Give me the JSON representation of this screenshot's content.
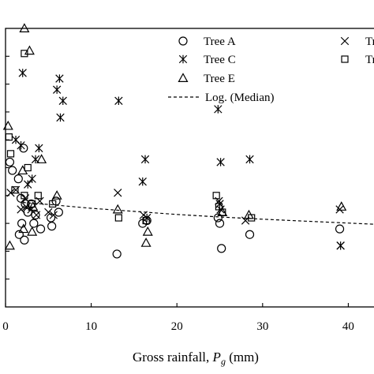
{
  "chart_data": {
    "type": "scatter",
    "xlabel": "Gross rainfall, ",
    "xlabel_var": "P",
    "xlabel_sub": "g",
    "xlabel_unit": " (mm)",
    "ylabel": "",
    "xlim": [
      0,
      43
    ],
    "ylim": [
      0,
      100
    ],
    "x_ticks": [
      0,
      10,
      20,
      30,
      40
    ],
    "grid": false,
    "legend_position": "top-right",
    "series": [
      {
        "name": "Tree A",
        "marker": "circle",
        "points": [
          [
            0.5,
            52
          ],
          [
            0.8,
            49
          ],
          [
            1.5,
            46
          ],
          [
            2.1,
            57
          ],
          [
            1.8,
            39
          ],
          [
            2.3,
            37
          ],
          [
            2.6,
            34
          ],
          [
            1.9,
            30
          ],
          [
            1.6,
            26
          ],
          [
            2.2,
            24
          ],
          [
            3.0,
            37
          ],
          [
            3.3,
            30
          ],
          [
            3.5,
            33
          ],
          [
            4.1,
            28
          ],
          [
            5.3,
            32
          ],
          [
            5.4,
            29
          ],
          [
            5.9,
            38
          ],
          [
            6.2,
            34
          ],
          [
            13.0,
            19
          ],
          [
            16.0,
            30
          ],
          [
            16.5,
            31
          ],
          [
            24.8,
            32
          ],
          [
            25.2,
            21
          ],
          [
            25.0,
            30
          ],
          [
            28.5,
            26
          ],
          [
            39.0,
            28
          ]
        ]
      },
      {
        "name": "Tree B",
        "marker": "x",
        "points": [
          [
            0.6,
            41
          ],
          [
            1.2,
            42
          ],
          [
            1.8,
            35
          ],
          [
            2.4,
            36
          ],
          [
            2.3,
            39
          ],
          [
            3.0,
            35
          ],
          [
            3.6,
            33
          ],
          [
            4.0,
            38
          ],
          [
            5.0,
            34
          ],
          [
            5.6,
            33
          ],
          [
            13.1,
            41
          ],
          [
            16.1,
            33
          ],
          [
            24.9,
            38
          ],
          [
            25.1,
            35
          ],
          [
            28.0,
            31
          ],
          [
            39.0,
            35
          ],
          [
            39.1,
            22
          ]
        ]
      },
      {
        "name": "Tree C",
        "marker": "asterisk",
        "points": [
          [
            1.2,
            60
          ],
          [
            1.8,
            58
          ],
          [
            2.0,
            84
          ],
          [
            3.5,
            53
          ],
          [
            3.9,
            57
          ],
          [
            3.1,
            46
          ],
          [
            2.6,
            44
          ],
          [
            6.0,
            78
          ],
          [
            6.3,
            82
          ],
          [
            6.7,
            74
          ],
          [
            6.4,
            68
          ],
          [
            13.2,
            74
          ],
          [
            16.3,
            53
          ],
          [
            16.0,
            45
          ],
          [
            24.8,
            71
          ],
          [
            25.1,
            52
          ],
          [
            28.5,
            53
          ],
          [
            25.0,
            37
          ],
          [
            16.5,
            32
          ],
          [
            39.1,
            22
          ]
        ]
      },
      {
        "name": "Tree D",
        "marker": "square",
        "points": [
          [
            0.4,
            61
          ],
          [
            0.6,
            55
          ],
          [
            1.1,
            42
          ],
          [
            2.2,
            91
          ],
          [
            2.6,
            50
          ],
          [
            2.2,
            40
          ],
          [
            3.1,
            37
          ],
          [
            3.8,
            40
          ],
          [
            5.5,
            37
          ],
          [
            13.2,
            32
          ],
          [
            16.4,
            31
          ],
          [
            24.6,
            40
          ],
          [
            24.9,
            36
          ],
          [
            25.3,
            34
          ],
          [
            28.7,
            32
          ]
        ]
      },
      {
        "name": "Tree E",
        "marker": "triangle",
        "points": [
          [
            0.3,
            65
          ],
          [
            0.5,
            22
          ],
          [
            2.0,
            49
          ],
          [
            2.1,
            28
          ],
          [
            2.2,
            100
          ],
          [
            2.8,
            92
          ],
          [
            3.1,
            27
          ],
          [
            3.2,
            36
          ],
          [
            4.2,
            53
          ],
          [
            6.0,
            40
          ],
          [
            13.1,
            35
          ],
          [
            16.4,
            23
          ],
          [
            16.6,
            27
          ],
          [
            25.3,
            34
          ],
          [
            28.4,
            33
          ],
          [
            39.2,
            36
          ]
        ]
      }
    ],
    "legend_entries": [
      "Tree A",
      "Tree B",
      "Tree C",
      "Tree D",
      "Tree E",
      "Log. (Median)"
    ],
    "legend_labels_visible": [
      "Tree A",
      "Tree",
      "Tree C",
      "Tree",
      "Tree E",
      "Log. (Median)"
    ],
    "trendline": {
      "name": "Log. (Median)",
      "style": "dashed",
      "x": [
        2,
        5,
        10,
        15,
        20,
        25,
        30,
        35,
        40,
        43
      ],
      "y": [
        37.5,
        36.8,
        35.4,
        34.3,
        33.2,
        32.3,
        31.5,
        30.8,
        30.1,
        29.7
      ]
    }
  }
}
